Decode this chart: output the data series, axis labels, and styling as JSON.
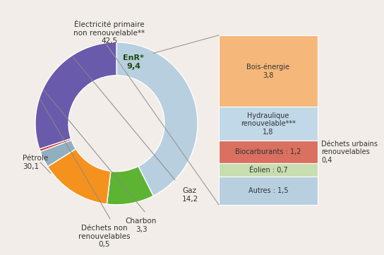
{
  "donut_labels": [
    "Électricité primaire\nnon renouvelable**",
    "EnR*",
    "Gaz",
    "Charbon",
    "Déchets non\nrenouvelables",
    "Pétrole"
  ],
  "donut_values": [
    42.5,
    9.4,
    14.2,
    3.3,
    0.5,
    30.1
  ],
  "donut_colors": [
    "#b8cfe0",
    "#5db332",
    "#f5921e",
    "#92afc0",
    "#cc2222",
    "#6a5aab"
  ],
  "enr_sub_labels": [
    "Bois-énergie\n3,8",
    "Hydraulique\nrenouvelable***\n1,8",
    "Biocarburants : 1,2",
    "Éolien : 0,7",
    "Autres : 1,5"
  ],
  "enr_sub_values": [
    3.8,
    1.8,
    1.2,
    0.7,
    1.5
  ],
  "enr_sub_colors": [
    "#f5b87a",
    "#c0d8e8",
    "#d97060",
    "#c8ddb0",
    "#b8cfe0"
  ],
  "dechets_urbains_label": "Déchets urbains\nrenouvelables\n0,4",
  "background_color": "#f2ede8"
}
